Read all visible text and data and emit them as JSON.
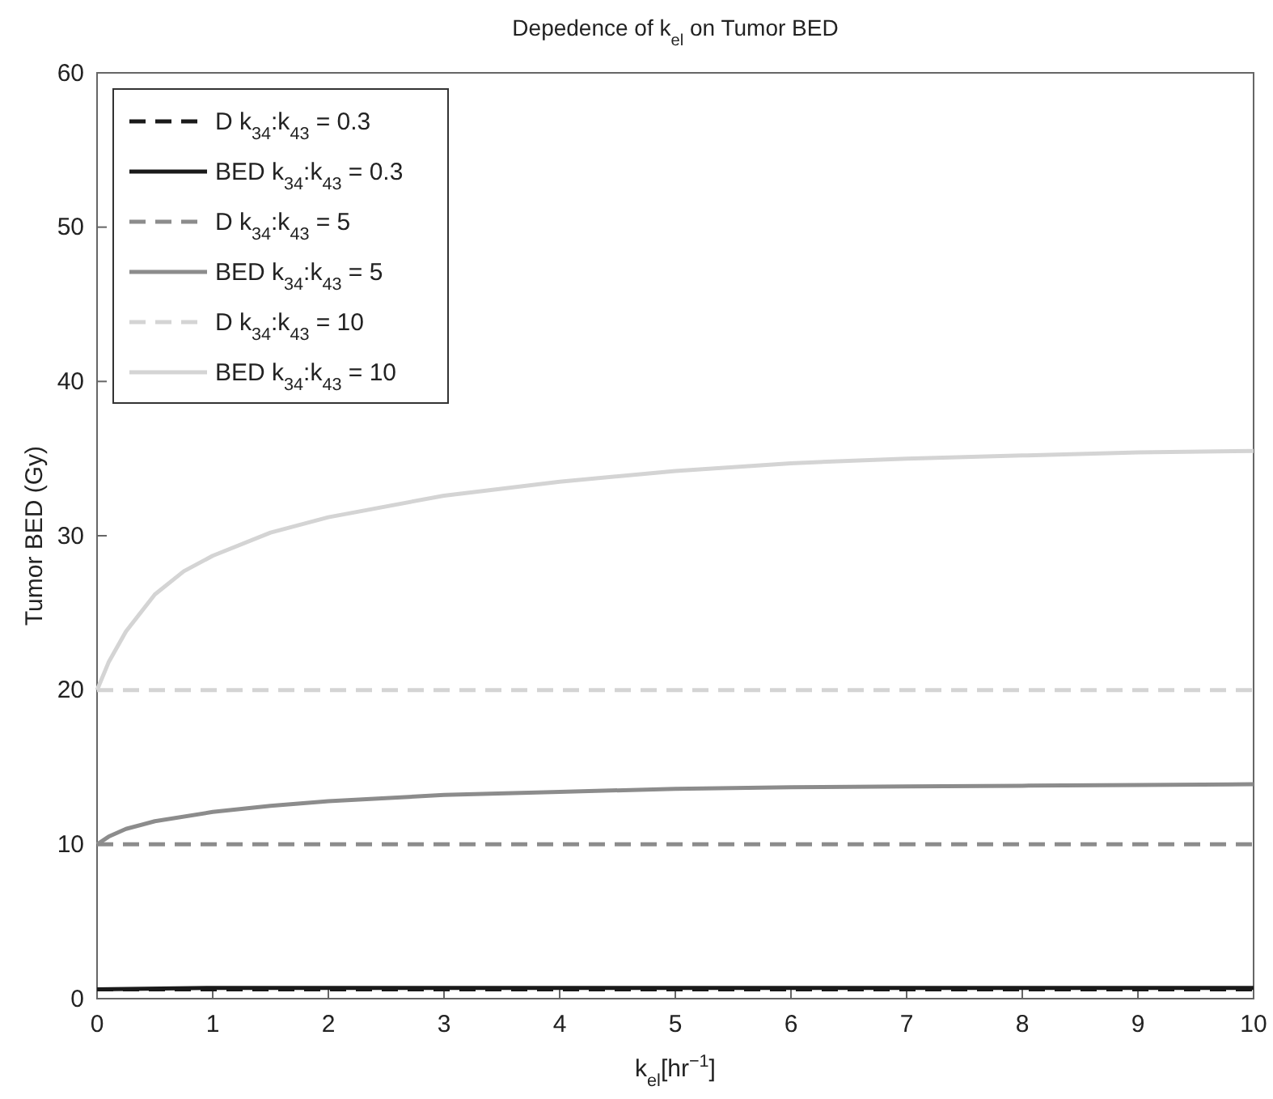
{
  "chart_data": {
    "type": "line",
    "title": "Depedence of k$_{el}$ on Tumor BED",
    "xlabel": "k$_{el}$[hr$^{−1}$]",
    "ylabel": "Tumor BED (Gy)",
    "xlim": [
      0,
      10
    ],
    "xticks": [
      0,
      1,
      2,
      3,
      4,
      5,
      6,
      7,
      8,
      9,
      10
    ],
    "ylim": [
      0,
      60
    ],
    "yticks": [
      0,
      10,
      20,
      30,
      40,
      50,
      60
    ],
    "grid": false,
    "legend": "top left",
    "series": [
      {
        "name": "D k$_{34}$:k$_{43}$ = 0.3",
        "color": "#1a1a1a",
        "line_style": "dashed",
        "x": [
          0,
          10
        ],
        "values": [
          0.6,
          0.6
        ]
      },
      {
        "name": "BED k$_{34}$:k$_{43}$ = 0.3",
        "color": "#1a1a1a",
        "line_style": "solid",
        "x": [
          0,
          1,
          2,
          5,
          10
        ],
        "values": [
          0.6,
          0.7,
          0.7,
          0.7,
          0.7
        ]
      },
      {
        "name": "D k$_{34}$:k$_{43}$ = 5",
        "color": "#8c8c8c",
        "line_style": "dashed",
        "x": [
          0,
          10
        ],
        "values": [
          10,
          10
        ]
      },
      {
        "name": "BED k$_{34}$:k$_{43}$ = 5",
        "color": "#8c8c8c",
        "line_style": "solid",
        "x": [
          0,
          0.1,
          0.25,
          0.5,
          1,
          1.5,
          2,
          3,
          4,
          5,
          6,
          7,
          8,
          9,
          10
        ],
        "values": [
          10,
          10.5,
          11,
          11.5,
          12.1,
          12.5,
          12.8,
          13.2,
          13.4,
          13.6,
          13.7,
          13.75,
          13.8,
          13.85,
          13.9
        ]
      },
      {
        "name": "D k$_{34}$:k$_{43}$ = 10",
        "color": "#d4d4d4",
        "line_style": "dashed",
        "x": [
          0,
          10
        ],
        "values": [
          20,
          20
        ]
      },
      {
        "name": "BED k$_{34}$:k$_{43}$ = 10",
        "color": "#d4d4d4",
        "line_style": "solid",
        "x": [
          0,
          0.1,
          0.25,
          0.5,
          0.75,
          1,
          1.5,
          2,
          3,
          4,
          5,
          6,
          7,
          8,
          9,
          10
        ],
        "values": [
          20,
          21.8,
          23.8,
          26.2,
          27.7,
          28.7,
          30.2,
          31.2,
          32.6,
          33.5,
          34.2,
          34.7,
          35,
          35.2,
          35.4,
          35.5
        ]
      }
    ]
  }
}
